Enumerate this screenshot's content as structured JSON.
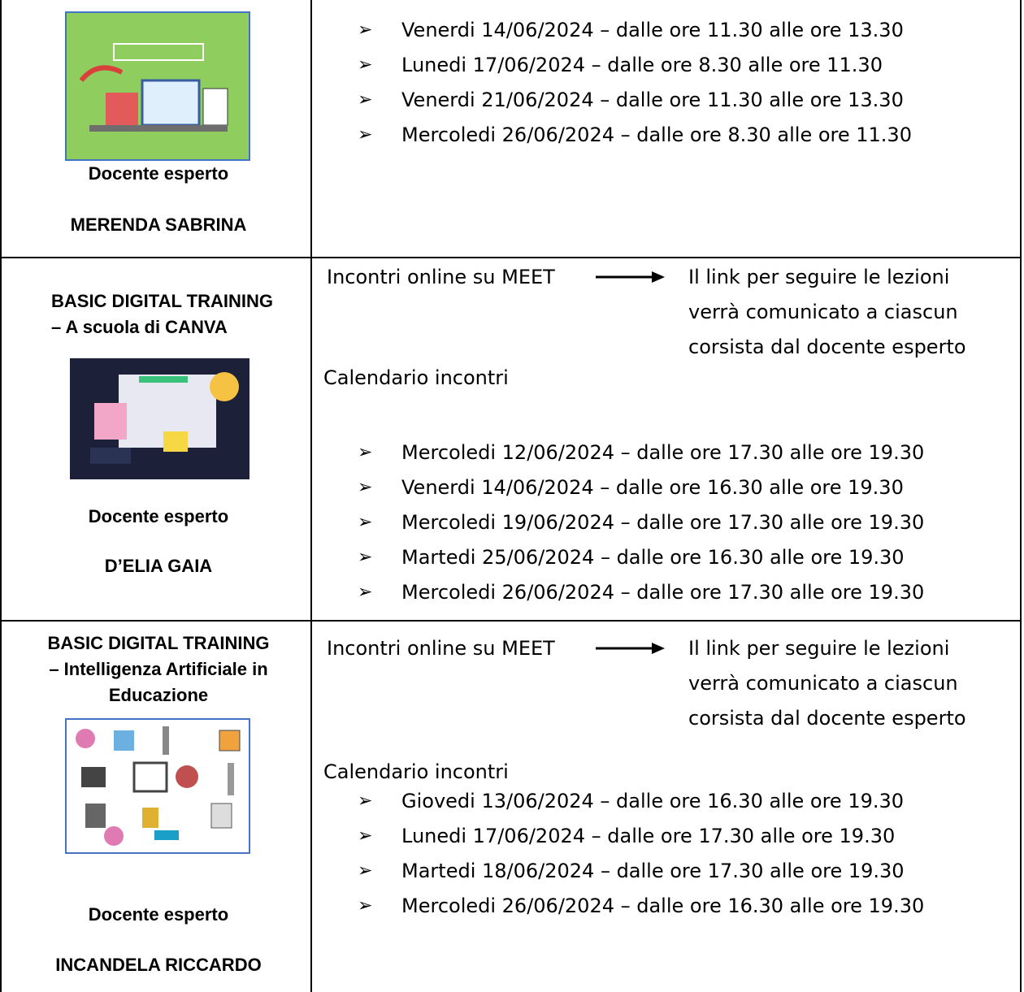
{
  "rows": [
    {
      "docente_label": "Docente esperto",
      "docente_name": "MERENDA SABRINA",
      "schedule": [
        "Venerdi 14/06/2024 – dalle ore 11.30 alle ore 13.30",
        "Lunedi 17/06/2024 – dalle ore 8.30 alle ore 11.30",
        "Venerdi 21/06/2024 – dalle ore 11.30 alle ore 13.30",
        "Mercoledi 26/06/2024 – dalle ore 8.30 alle ore 11.30"
      ]
    },
    {
      "title": [
        "BASIC DIGITAL TRAINING",
        "– A scuola di CANVA"
      ],
      "docente_label": "Docente esperto",
      "docente_name": "D’ELIA GAIA",
      "meet": "Incontri online su MEET",
      "link_note": [
        "Il link per seguire le lezioni",
        "verrà comunicato a ciascun",
        "corsista dal docente esperto"
      ],
      "calendar_label": "Calendario incontri",
      "schedule": [
        "Mercoledi 12/06/2024 – dalle ore 17.30 alle ore 19.30",
        "Venerdi 14/06/2024 – dalle ore 16.30 alle ore 19.30",
        "Mercoledi 19/06/2024 – dalle ore 17.30 alle ore 19.30",
        "Martedi 25/06/2024 – dalle ore 16.30 alle ore 19.30",
        "Mercoledi 26/06/2024 – dalle ore 17.30 alle ore 19.30"
      ]
    },
    {
      "title": [
        "BASIC DIGITAL TRAINING",
        "– Intelligenza Artificiale in",
        "Educazione"
      ],
      "docente_label": "Docente esperto",
      "docente_name": "INCANDELA RICCARDO",
      "meet": "Incontri online su MEET",
      "link_note": [
        "Il link per seguire le lezioni",
        "verrà comunicato a ciascun",
        "corsista dal docente esperto"
      ],
      "calendar_label": "Calendario incontri",
      "schedule": [
        "Giovedi 13/06/2024 – dalle ore 16.30 alle ore 19.30",
        "Lunedi 17/06/2024 – dalle ore 17.30 alle ore 19.30",
        "Martedi 18/06/2024 – dalle ore 17.30 alle ore 19.30",
        "Mercoledi 26/06/2024 – dalle ore 16.30 alle ore 19.30"
      ]
    }
  ]
}
